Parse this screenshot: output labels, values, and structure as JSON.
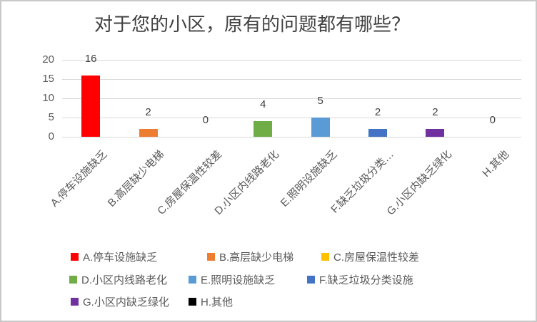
{
  "chart_data": {
    "type": "bar",
    "title": "对于您的小区，原有的问题都有哪些？",
    "categories": [
      "A.停车设施缺乏",
      "B.高层缺少电梯",
      "C.房屋保温性较差",
      "D.小区内线路老化",
      "E.照明设施缺乏",
      "F.缺乏垃圾分类设施",
      "G.小区内缺乏绿化",
      "H.其他"
    ],
    "x_tick_labels": [
      "A.停车设施缺乏",
      "B.高层缺少电梯",
      "C.房屋保温性较差",
      "D.小区内线路老化",
      "E.照明设施缺乏",
      "F.缺乏垃圾分类…",
      "G.小区内缺乏绿化",
      "H.其他"
    ],
    "values": [
      16,
      2,
      0,
      4,
      5,
      2,
      2,
      0
    ],
    "colors": [
      "#FF0000",
      "#ED7D31",
      "#FFC000",
      "#70AD47",
      "#5B9BD5",
      "#4472C4",
      "#7030A0",
      "#000000"
    ],
    "xlabel": "",
    "ylabel": "",
    "ylim": [
      0,
      20
    ],
    "yticks": [
      0,
      5,
      10,
      15,
      20
    ],
    "grid": true,
    "legend_position": "bottom",
    "legend": [
      {
        "label": "A.停车设施缺乏",
        "color": "#FF0000"
      },
      {
        "label": "B.高层缺少电梯",
        "color": "#ED7D31"
      },
      {
        "label": "C.房屋保温性较差",
        "color": "#FFC000"
      },
      {
        "label": "D.小区内线路老化",
        "color": "#70AD47"
      },
      {
        "label": "E.照明设施缺乏",
        "color": "#5B9BD5"
      },
      {
        "label": "F.缺乏垃圾分类设施",
        "color": "#4472C4"
      },
      {
        "label": "G.小区内缺乏绿化",
        "color": "#7030A0"
      },
      {
        "label": "H.其他",
        "color": "#000000"
      }
    ]
  }
}
